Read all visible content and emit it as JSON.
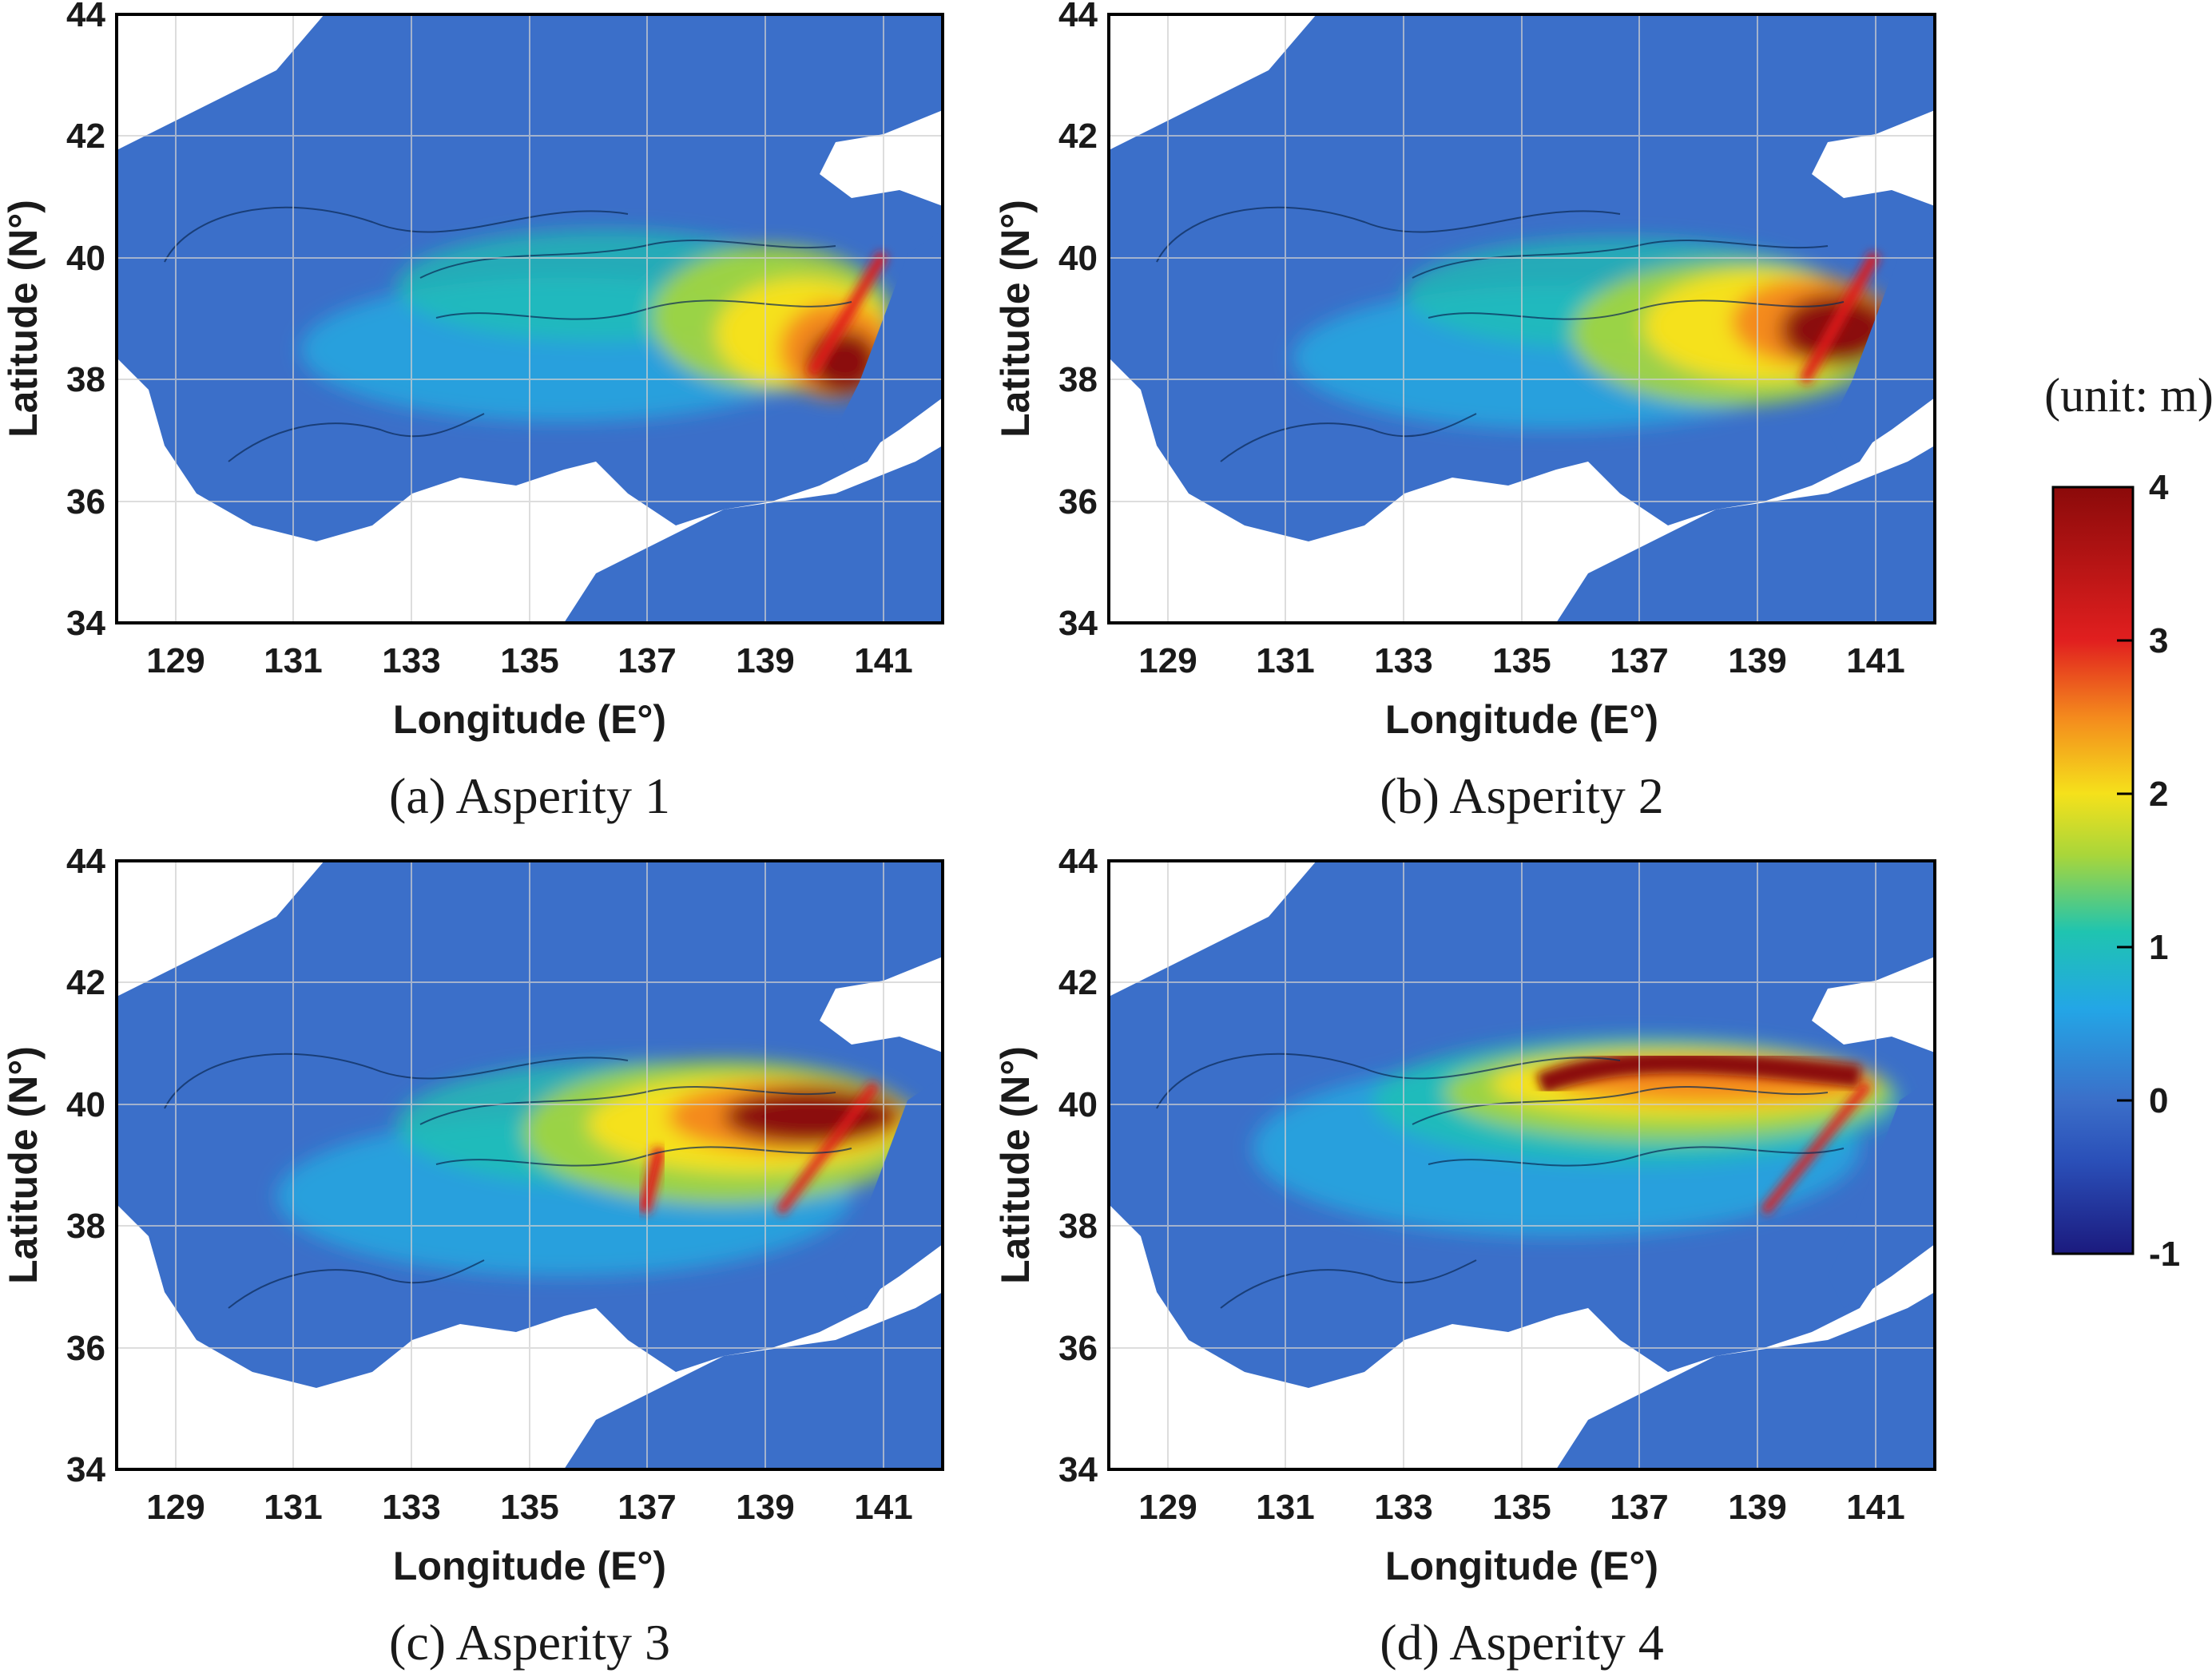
{
  "colors": {
    "sea_base": "#3b6fc9",
    "land": "#ffffff",
    "grid": "#c8c8c8",
    "frame": "#000000",
    "colormap": [
      "#1b1a7e",
      "#3b6fc9",
      "#23b0e3",
      "#1fc4b0",
      "#a9d63a",
      "#f5e11b",
      "#f48a1d",
      "#e11f1f",
      "#8b0a0a"
    ]
  },
  "axes": {
    "xlabel": "Longitude (E°)",
    "ylabel": "Latitude (N°)",
    "xticks": [
      "129",
      "131",
      "133",
      "135",
      "137",
      "139",
      "141"
    ],
    "yticks": [
      "34",
      "36",
      "38",
      "40",
      "42",
      "44"
    ],
    "xlim": [
      128,
      142
    ],
    "ylim": [
      34,
      44
    ]
  },
  "panels": [
    {
      "caption": "(a) Asperity 1"
    },
    {
      "caption": "(b) Asperity 2"
    },
    {
      "caption": "(c) Asperity 3"
    },
    {
      "caption": "(d) Asperity 4"
    }
  ],
  "colorbar": {
    "unit_label": "(unit: m)",
    "ticks": [
      "4",
      "3",
      "2",
      "1",
      "0",
      "-1"
    ],
    "range": [
      -1,
      4
    ]
  }
}
